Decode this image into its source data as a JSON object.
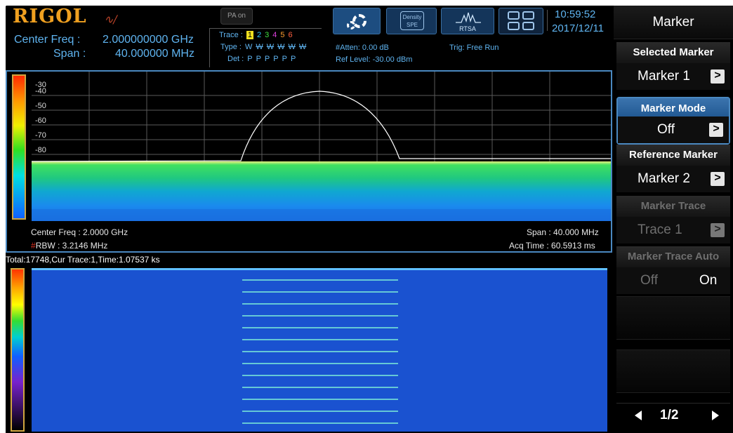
{
  "header": {
    "brand": "RIGOL",
    "pa_button": "PA on",
    "center_freq_label": "Center Freq :",
    "center_freq_value": "2.000000000 GHz",
    "span_label": "Span :",
    "span_value": "40.000000 MHz",
    "trace": {
      "label": "Trace :",
      "numbers": [
        "1",
        "2",
        "3",
        "4",
        "5",
        "6"
      ],
      "type_label": "Type :",
      "types": [
        "W",
        "W",
        "W",
        "W",
        "W",
        "W"
      ],
      "det_label": "Det :",
      "dets": [
        "P",
        "P",
        "P",
        "P",
        "P",
        "P"
      ]
    },
    "atten": "#Atten: 0.00 dB",
    "ref_level": "Ref Level: -30.00 dBm",
    "trig": "Trig: Free Run",
    "density_button": {
      "line1": "Density",
      "line2": "SPE"
    },
    "rtsa_button": "RTSA",
    "time": "10:59:52",
    "date": "2017/12/11",
    "colors": {
      "accent": "#5fb4f0",
      "brand": "#f0a020"
    }
  },
  "spectrum": {
    "y_ticks": [
      "-30",
      "-40",
      "-50",
      "-60",
      "-70",
      "-80"
    ],
    "center_freq": "Center Freq : 2.0000 GHz",
    "rbw_mark": "#",
    "rbw": "RBW : 3.2146 MHz",
    "span": "Span : 40.000 MHz",
    "acq_time": "Acq Time : 60.5913 ms"
  },
  "waterfall": {
    "status": "Total:17748,Cur Trace:1,Time:1.07537 ks"
  },
  "menu": {
    "title": "Marker",
    "selected_marker_label": "Selected Marker",
    "selected_marker_value": "Marker 1",
    "marker_mode_label": "Marker Mode",
    "marker_mode_value": "Off",
    "reference_marker_label": "Reference Marker",
    "reference_marker_value": "Marker 2",
    "marker_trace_label": "Marker Trace",
    "marker_trace_value": "Trace 1",
    "marker_trace_auto_label": "Marker Trace Auto",
    "marker_trace_auto_off": "Off",
    "marker_trace_auto_on": "On",
    "page": "1/2",
    "chevron": ">"
  }
}
